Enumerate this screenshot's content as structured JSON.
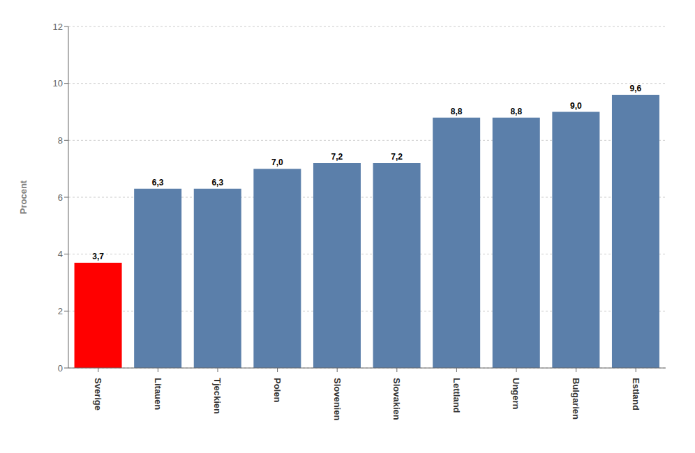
{
  "chart_data": {
    "type": "bar",
    "categories": [
      "Sverige",
      "Litauen",
      "Tjeckien",
      "Polen",
      "Slovenien",
      "Slovakien",
      "Lettland",
      "Ungern",
      "Bulgarien",
      "Estland"
    ],
    "values": [
      3.7,
      6.3,
      6.3,
      7.0,
      7.2,
      7.2,
      8.8,
      8.8,
      9.0,
      9.6
    ],
    "value_labels": [
      "3,7",
      "6,3",
      "6,3",
      "7,0",
      "7,2",
      "7,2",
      "8,8",
      "8,8",
      "9,0",
      "9,6"
    ],
    "colors": [
      "#ff0000",
      "#5b7faa",
      "#5b7faa",
      "#5b7faa",
      "#5b7faa",
      "#5b7faa",
      "#5b7faa",
      "#5b7faa",
      "#5b7faa",
      "#5b7faa"
    ],
    "ylabel": "Procent",
    "ylim": [
      0,
      12
    ],
    "yticks": [
      0,
      2,
      4,
      6,
      8,
      10,
      12
    ],
    "grid": true,
    "data_labels": true
  }
}
